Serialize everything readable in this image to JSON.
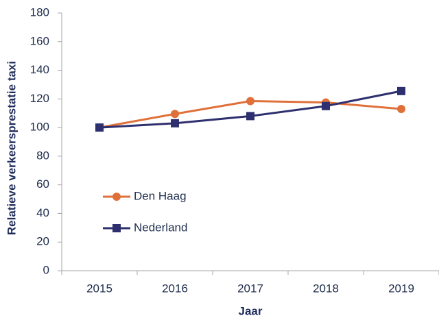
{
  "chart_data": {
    "type": "line",
    "x_label": "Jaar",
    "y_label": "Relatieve verkeersprestatie taxi",
    "categories": [
      "2015",
      "2016",
      "2017",
      "2018",
      "2019"
    ],
    "series": [
      {
        "name": "Den Haag",
        "color": "#e0703a",
        "marker": "circle",
        "values": [
          100,
          109.5,
          118.5,
          117.5,
          113
        ]
      },
      {
        "name": "Nederland",
        "color": "#2e2f6e",
        "marker": "square",
        "values": [
          100,
          103,
          108,
          115,
          125.5
        ]
      }
    ],
    "ylim": [
      0,
      180
    ],
    "yticks": [
      0,
      20,
      40,
      60,
      80,
      100,
      120,
      140,
      160,
      180
    ],
    "grid": false,
    "legend": "left"
  }
}
